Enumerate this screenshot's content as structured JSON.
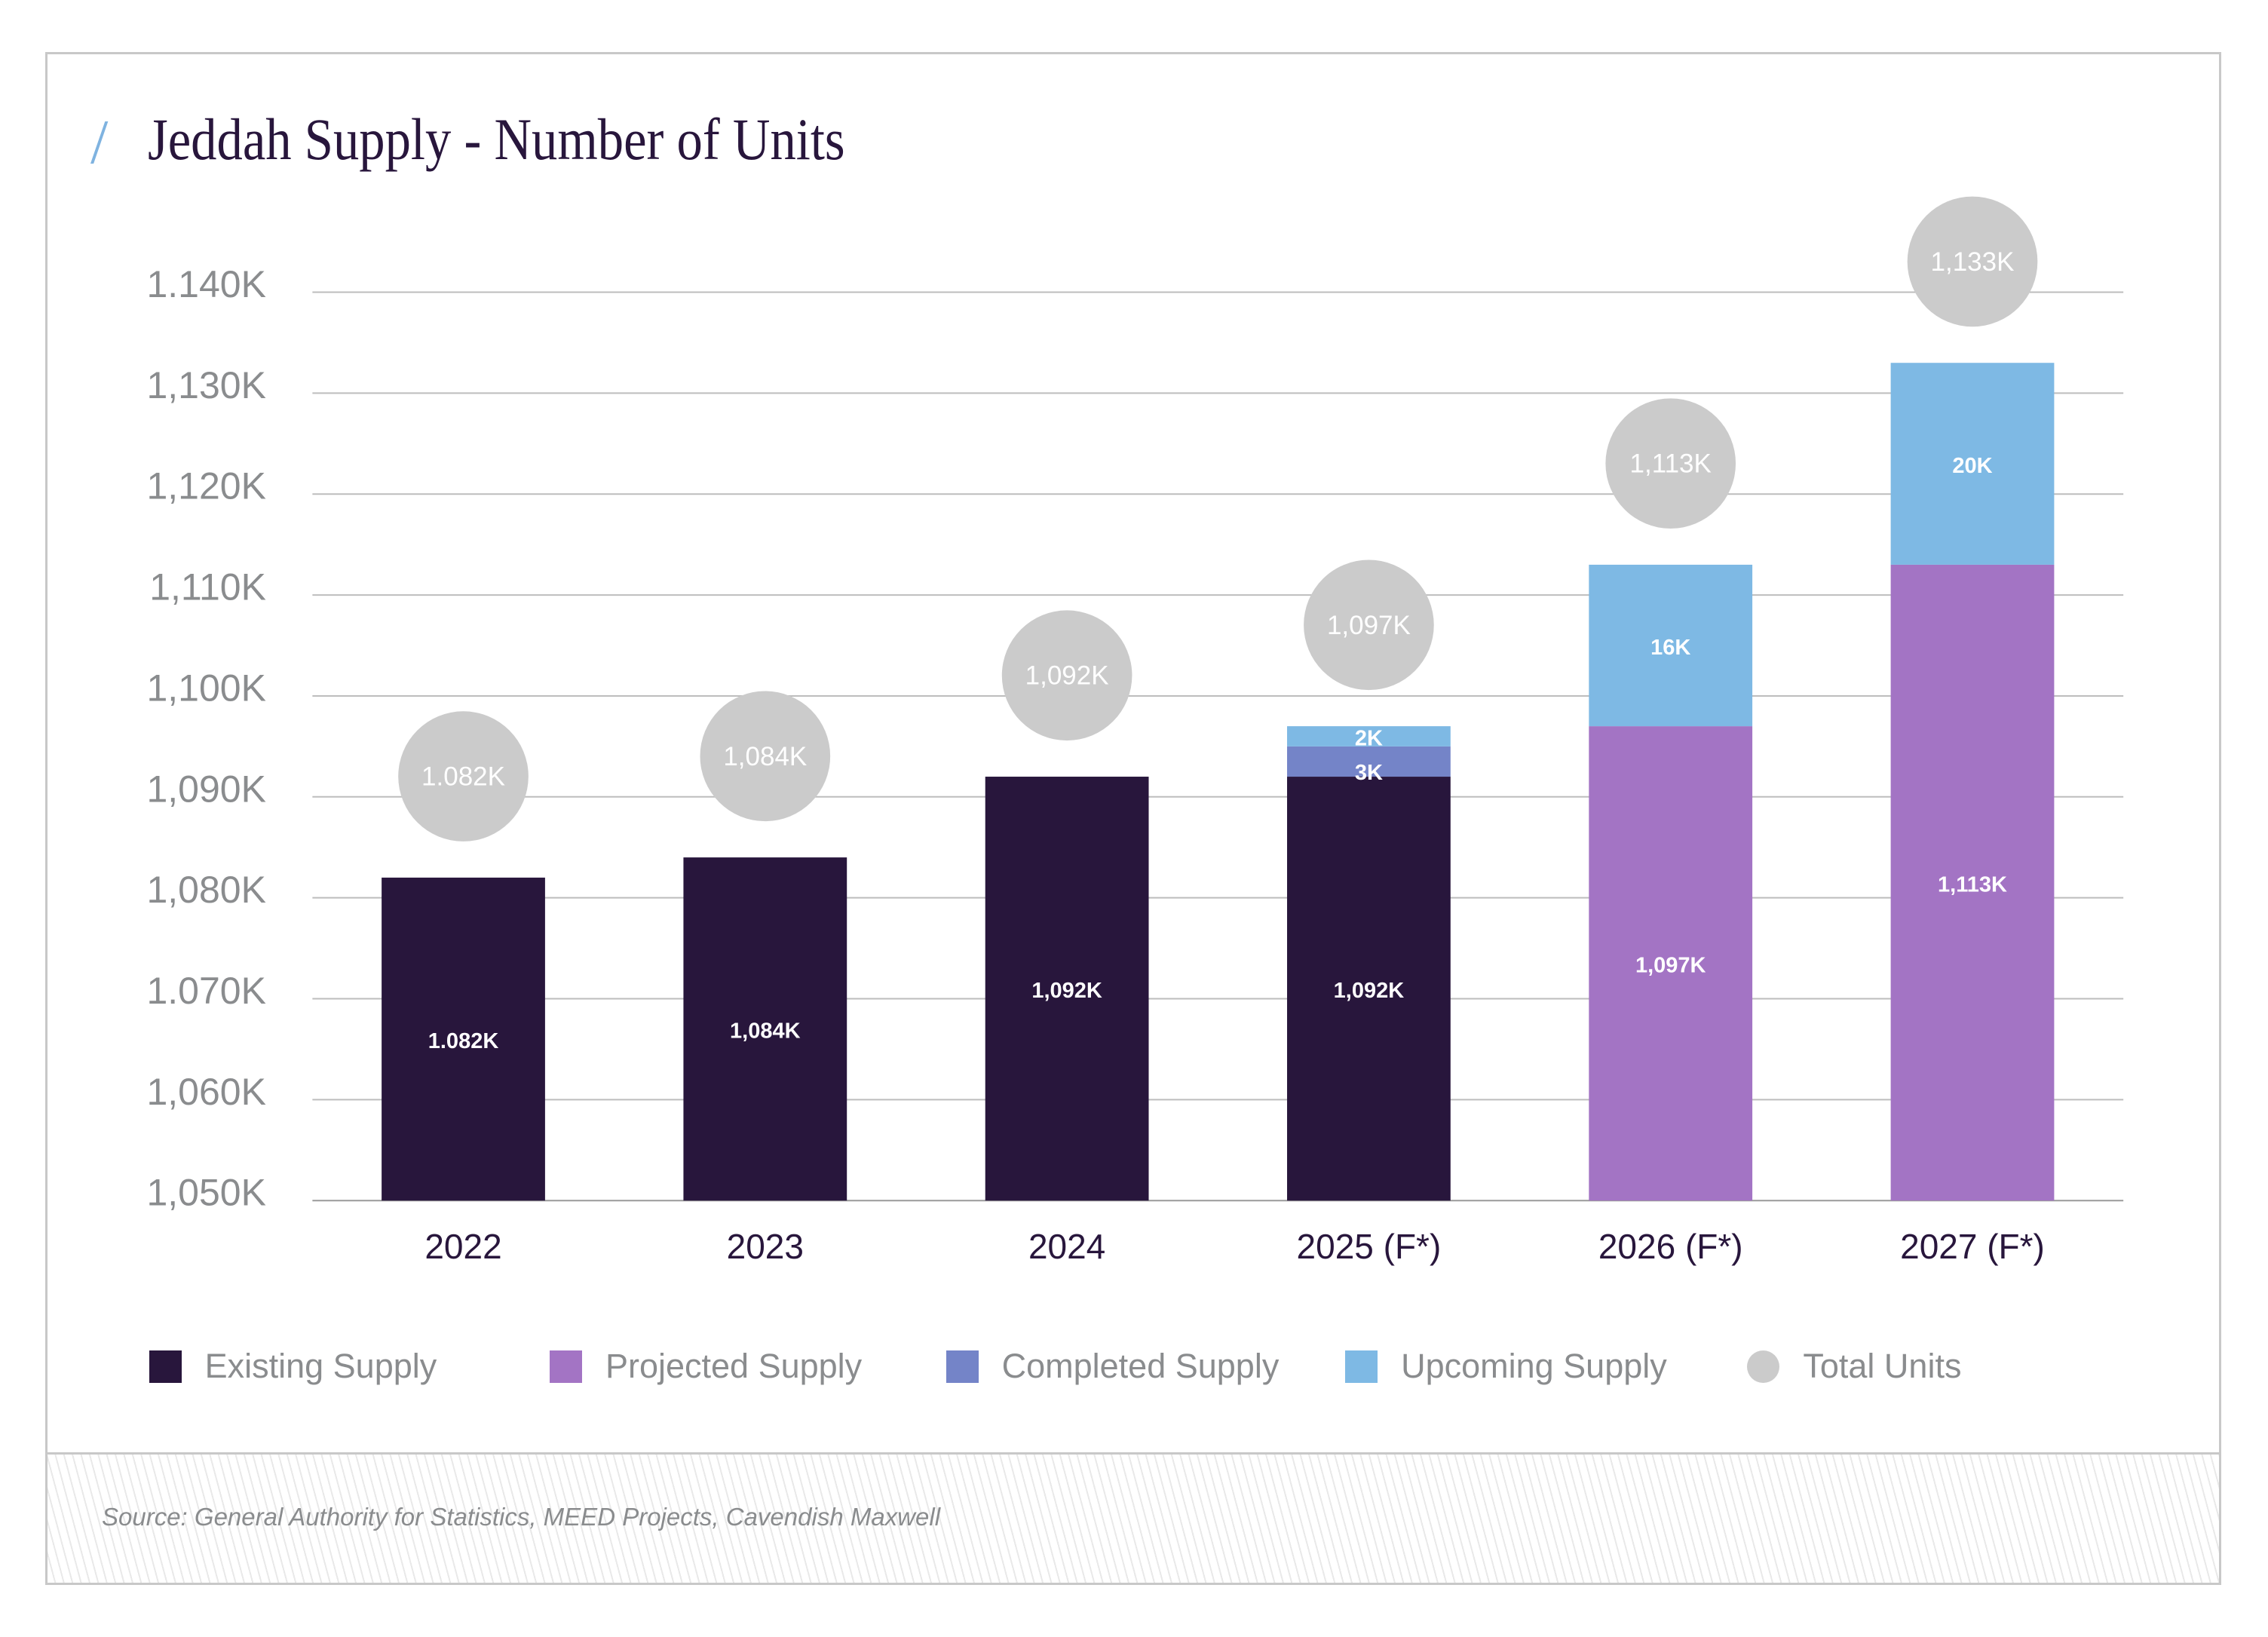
{
  "title": "Jeddah Supply - Number of Units",
  "title_accent": "/",
  "source": "Source: General Authority for Statistics, MEED Projects, Cavendish Maxwell",
  "colors": {
    "existing": "#28163c",
    "projected": "#a374c4",
    "completed": "#7484c8",
    "upcoming": "#7eb9e4",
    "total": "#cbcbcb",
    "axis_text": "#8a8c8e",
    "category_text": "#28163c",
    "grid": "#bdbdbd"
  },
  "legend": [
    {
      "key": "existing",
      "label": "Existing Supply",
      "shape": "square"
    },
    {
      "key": "projected",
      "label": "Projected Supply",
      "shape": "square"
    },
    {
      "key": "completed",
      "label": "Completed Supply",
      "shape": "square"
    },
    {
      "key": "upcoming",
      "label": "Upcoming Supply",
      "shape": "square"
    },
    {
      "key": "total",
      "label": "Total Units",
      "shape": "circle"
    }
  ],
  "chart_data": {
    "type": "bar",
    "stacked": true,
    "title": "Jeddah Supply - Number of Units",
    "xlabel": "",
    "ylabel": "",
    "ylim": [
      1050,
      1140
    ],
    "y_unit": "thousand units",
    "grid": true,
    "legend_position": "bottom",
    "y_ticks": [
      1050,
      1060,
      1070,
      1080,
      1090,
      1100,
      1110,
      1120,
      1130,
      1140
    ],
    "y_tick_labels": [
      "1,050K",
      "1,060K",
      "1.070K",
      "1,080K",
      "1,090K",
      "1,100K",
      "1,110K",
      "1,120K",
      "1,130K",
      "1.140K"
    ],
    "categories": [
      "2022",
      "2023",
      "2024",
      "2025 (F*)",
      "2026 (F*)",
      "2027 (F*)"
    ],
    "series": [
      {
        "name": "Existing Supply",
        "key": "existing",
        "values": [
          1082,
          1084,
          1092,
          1092,
          null,
          null
        ],
        "labels": [
          "1.082K",
          "1,084K",
          "1,092K",
          "1,092K",
          "",
          ""
        ]
      },
      {
        "name": "Projected Supply",
        "key": "projected",
        "values": [
          null,
          null,
          null,
          null,
          1097,
          1113
        ],
        "labels": [
          "",
          "",
          "",
          "",
          "1,097K",
          "1,113K"
        ]
      },
      {
        "name": "Completed Supply",
        "key": "completed",
        "values": [
          null,
          null,
          null,
          3,
          null,
          null
        ],
        "labels": [
          "",
          "",
          "",
          "3K",
          "",
          ""
        ]
      },
      {
        "name": "Upcoming Supply",
        "key": "upcoming",
        "values": [
          null,
          null,
          null,
          2,
          16,
          20
        ],
        "labels": [
          "",
          "",
          "",
          "2K",
          "16K",
          "20K"
        ]
      }
    ],
    "totals": {
      "name": "Total Units",
      "values": [
        1082,
        1084,
        1092,
        1097,
        1113,
        1133
      ],
      "labels": [
        "1.082K",
        "1,084K",
        "1,092K",
        "1,097K",
        "1,113K",
        "1,133K"
      ]
    }
  }
}
